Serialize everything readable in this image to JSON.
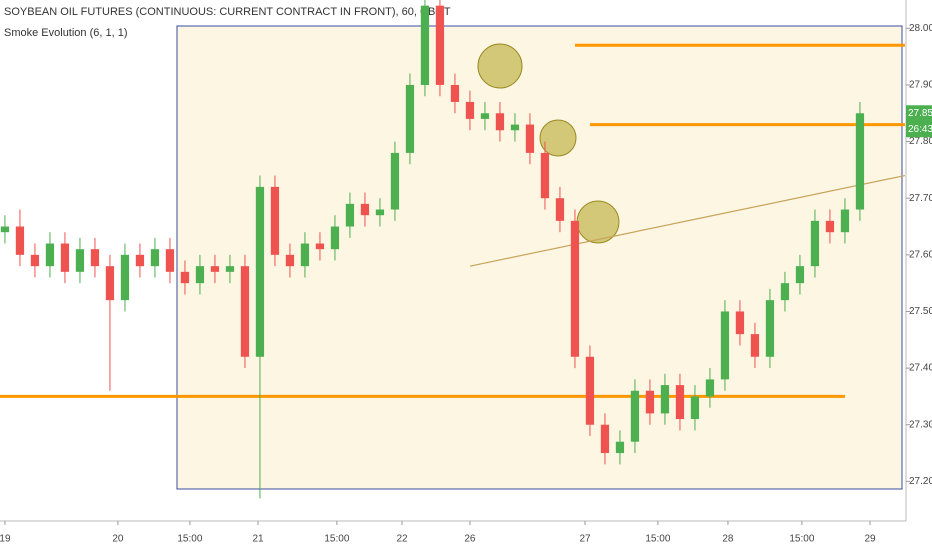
{
  "chart_data": {
    "type": "candlestick",
    "title": "SOYBEAN OIL FUTURES (CONTINUOUS: CURRENT CONTRACT IN FRONT), 60, CBOT",
    "subtitle": "Smoke Evolution (6, 1, 1)",
    "x": [
      0,
      1,
      2,
      3,
      4,
      5,
      6,
      7,
      8,
      9,
      10,
      11,
      12,
      13,
      14,
      15,
      16,
      17,
      18,
      19,
      20,
      21,
      22,
      23,
      24,
      25,
      26,
      27,
      28,
      29,
      30,
      31,
      32,
      33,
      34,
      35,
      36,
      37,
      38,
      39,
      40,
      41,
      42,
      43,
      44,
      45,
      46,
      47,
      48,
      49,
      50,
      51,
      52,
      53,
      54,
      55,
      56,
      57
    ],
    "open": [
      27.64,
      27.65,
      27.6,
      27.58,
      27.62,
      27.57,
      27.61,
      27.58,
      27.52,
      27.6,
      27.58,
      27.61,
      27.57,
      27.55,
      27.58,
      27.57,
      27.58,
      27.42,
      27.72,
      27.6,
      27.58,
      27.62,
      27.61,
      27.65,
      27.69,
      27.67,
      27.68,
      27.78,
      27.9,
      28.04,
      27.9,
      27.87,
      27.84,
      27.85,
      27.82,
      27.83,
      27.78,
      27.7,
      27.66,
      27.42,
      27.3,
      27.25,
      27.27,
      27.36,
      27.32,
      27.37,
      27.31,
      27.35,
      27.38,
      27.5,
      27.46,
      27.42,
      27.52,
      27.55,
      27.58,
      27.66,
      27.64,
      27.68
    ],
    "high": [
      27.67,
      27.68,
      27.62,
      27.64,
      27.64,
      27.63,
      27.63,
      27.6,
      27.62,
      27.62,
      27.63,
      27.63,
      27.59,
      27.6,
      27.6,
      27.6,
      27.6,
      27.74,
      27.74,
      27.62,
      27.64,
      27.64,
      27.67,
      27.71,
      27.71,
      27.7,
      27.8,
      27.92,
      28.05,
      28.05,
      27.92,
      27.89,
      27.87,
      27.87,
      27.85,
      27.85,
      27.8,
      27.72,
      27.68,
      27.44,
      27.32,
      27.29,
      27.38,
      27.38,
      27.39,
      27.39,
      27.37,
      27.4,
      27.52,
      27.52,
      27.48,
      27.54,
      27.57,
      27.6,
      27.68,
      27.68,
      27.7,
      27.87
    ],
    "low": [
      27.62,
      27.58,
      27.56,
      27.56,
      27.55,
      27.55,
      27.56,
      27.36,
      27.5,
      27.56,
      27.56,
      27.55,
      27.53,
      27.53,
      27.55,
      27.55,
      27.4,
      27.17,
      27.58,
      27.56,
      27.56,
      27.59,
      27.59,
      27.63,
      27.65,
      27.65,
      27.66,
      27.76,
      27.88,
      27.88,
      27.85,
      27.82,
      27.82,
      27.8,
      27.8,
      27.76,
      27.68,
      27.64,
      27.4,
      27.28,
      27.23,
      27.23,
      27.25,
      27.3,
      27.3,
      27.29,
      27.29,
      27.33,
      27.36,
      27.44,
      27.4,
      27.4,
      27.5,
      27.53,
      27.56,
      27.62,
      27.62,
      27.66
    ],
    "close": [
      27.65,
      27.6,
      27.58,
      27.62,
      27.57,
      27.61,
      27.58,
      27.52,
      27.6,
      27.58,
      27.61,
      27.57,
      27.55,
      27.58,
      27.57,
      27.58,
      27.42,
      27.72,
      27.6,
      27.58,
      27.62,
      27.61,
      27.65,
      27.69,
      27.67,
      27.68,
      27.78,
      27.9,
      28.04,
      27.9,
      27.87,
      27.84,
      27.85,
      27.82,
      27.83,
      27.78,
      27.7,
      27.66,
      27.42,
      27.3,
      27.25,
      27.27,
      27.36,
      27.32,
      27.37,
      27.31,
      27.35,
      27.38,
      27.5,
      27.46,
      27.42,
      27.52,
      27.55,
      27.58,
      27.66,
      27.64,
      27.68,
      27.85
    ],
    "up_color": "#4caf50",
    "down_color": "#ef5350",
    "xlim": [
      -0.33,
      60.07
    ],
    "ylim": [
      27.13,
      28.05
    ],
    "xticks": [
      {
        "value": 0,
        "label": "19"
      },
      {
        "value": 7.53,
        "label": "20"
      },
      {
        "value": 12.33,
        "label": "15:00"
      },
      {
        "value": 16.87,
        "label": "21"
      },
      {
        "value": 22.13,
        "label": "15:00"
      },
      {
        "value": 26.47,
        "label": "22"
      },
      {
        "value": 31,
        "label": "26"
      },
      {
        "value": 38.67,
        "label": "27"
      },
      {
        "value": 43.53,
        "label": "15:00"
      },
      {
        "value": 48.2,
        "label": "28"
      },
      {
        "value": 53.13,
        "label": "15:00"
      },
      {
        "value": 57.67,
        "label": "29"
      }
    ],
    "yticks": [
      {
        "value": 27.2,
        "label": "27.20"
      },
      {
        "value": 27.3,
        "label": "27.30"
      },
      {
        "value": 27.4,
        "label": "27.40"
      },
      {
        "value": 27.5,
        "label": "27.50"
      },
      {
        "value": 27.6,
        "label": "27.60"
      },
      {
        "value": 27.7,
        "label": "27.70"
      },
      {
        "value": 27.8,
        "label": "27.80"
      },
      {
        "value": 27.9,
        "label": "27.90"
      },
      {
        "value": 28.0,
        "label": "28.00"
      }
    ],
    "levels": [
      {
        "value": 27.97,
        "x": [
          38,
          60
        ]
      },
      {
        "value": 27.83,
        "x": [
          39,
          60
        ]
      },
      {
        "value": 27.35,
        "x": [
          -0.33,
          56
        ]
      }
    ],
    "level_color": "#ff9800",
    "trend_line": {
      "x": [
        31,
        60
      ],
      "y": [
        27.58,
        27.74
      ],
      "color": "#c8a45a"
    },
    "last_price": {
      "value": 27.85,
      "label": "27.85",
      "countdown": "26:43"
    }
  }
}
